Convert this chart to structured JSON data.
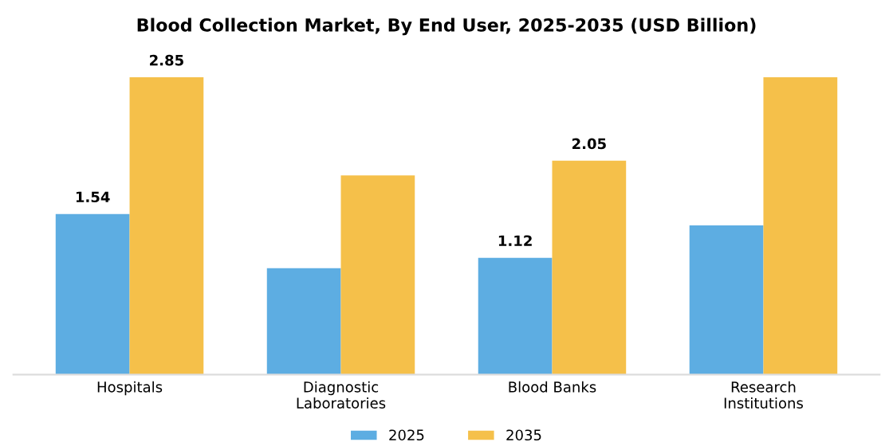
{
  "chart_data": {
    "type": "bar",
    "title": "Blood Collection Market, By End User, 2025-2035 (USD Billion)",
    "categories": [
      "Hospitals",
      "Diagnostic\nLaboratories",
      "Blood Banks",
      "Research\nInstitutions"
    ],
    "series": [
      {
        "name": "2025",
        "color": "#5dade2",
        "values": [
          1.54,
          1.02,
          1.12,
          1.43
        ],
        "value_labels": [
          "1.54",
          null,
          "1.12",
          null
        ]
      },
      {
        "name": "2035",
        "color": "#f5c04a",
        "values": [
          2.85,
          1.91,
          2.05,
          2.85
        ],
        "value_labels": [
          "2.85",
          null,
          "2.05",
          null
        ]
      }
    ],
    "legend": "bottom",
    "grid": false
  }
}
